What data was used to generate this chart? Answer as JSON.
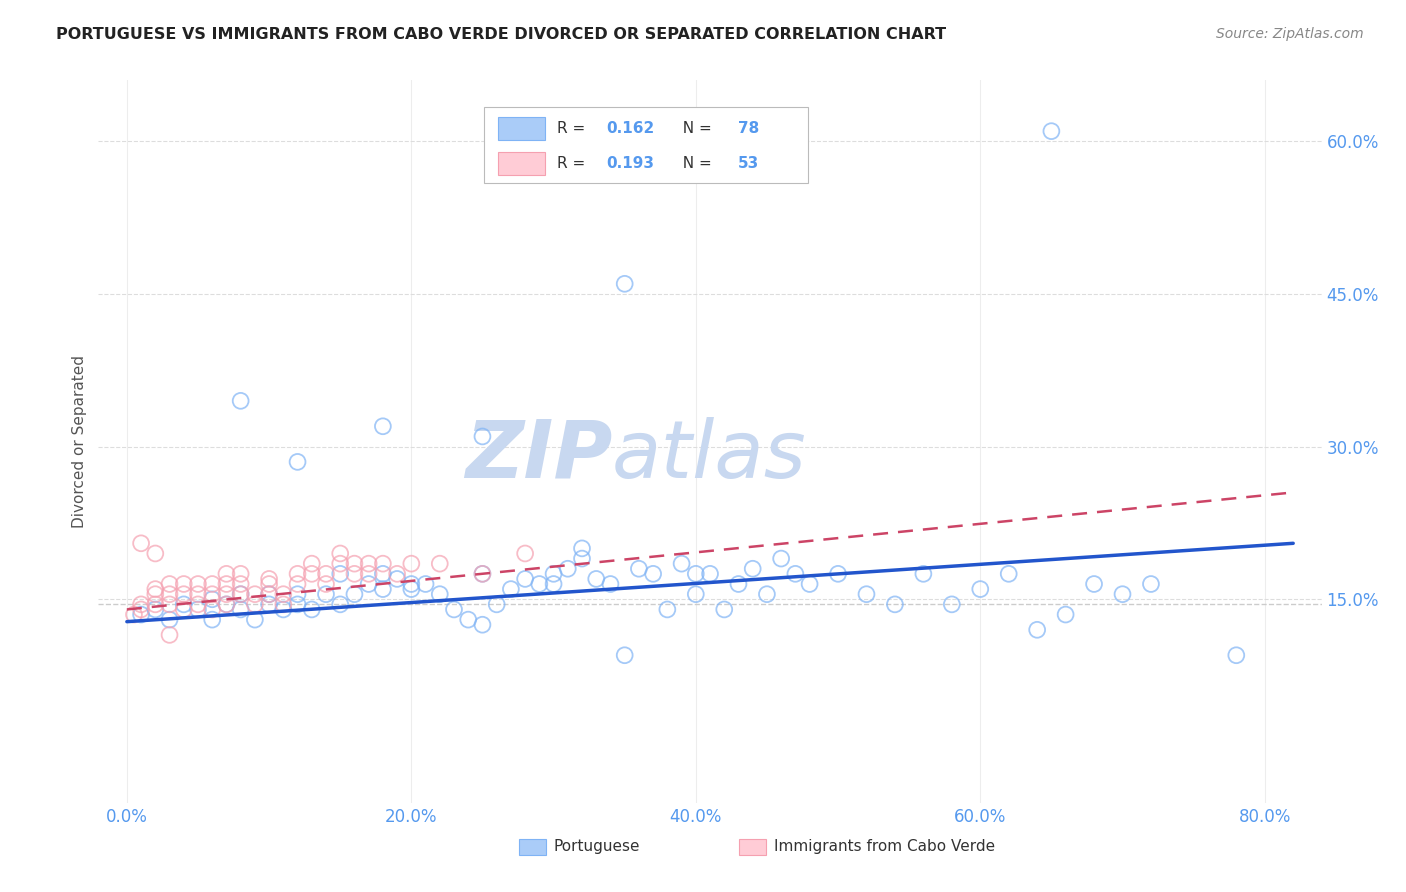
{
  "title": "PORTUGUESE VS IMMIGRANTS FROM CABO VERDE DIVORCED OR SEPARATED CORRELATION CHART",
  "source": "Source: ZipAtlas.com",
  "xlabel_ticks": [
    "0.0%",
    "20.0%",
    "40.0%",
    "60.0%",
    "80.0%"
  ],
  "xlabel_tick_vals": [
    0.0,
    0.2,
    0.4,
    0.6,
    0.8
  ],
  "ylabel": "Divorced or Separated",
  "ylabel_ticks": [
    "15.0%",
    "30.0%",
    "45.0%",
    "60.0%"
  ],
  "ylabel_tick_vals": [
    0.15,
    0.3,
    0.45,
    0.6
  ],
  "xlim": [
    -0.02,
    0.84
  ],
  "ylim": [
    -0.05,
    0.66
  ],
  "series1_label": "Portuguese",
  "series2_label": "Immigrants from Cabo Verde",
  "r1": 0.162,
  "n1": 78,
  "r2": 0.193,
  "n2": 53,
  "color1": "#7FB3F5",
  "color2": "#F5A0B0",
  "trendline1_color": "#2255CC",
  "trendline2_color": "#CC4466",
  "trendline1_y0": 0.128,
  "trendline1_y1": 0.205,
  "trendline2_y0": 0.14,
  "trendline2_y1": 0.255,
  "trendline_x0": 0.0,
  "trendline_x1": 0.82,
  "ref_line_y": 0.145,
  "watermark_zip": "ZIP",
  "watermark_atlas": "atlas",
  "watermark_color": "#C8D8F0",
  "background_color": "#FFFFFF",
  "grid_color": "#DDDDDD"
}
